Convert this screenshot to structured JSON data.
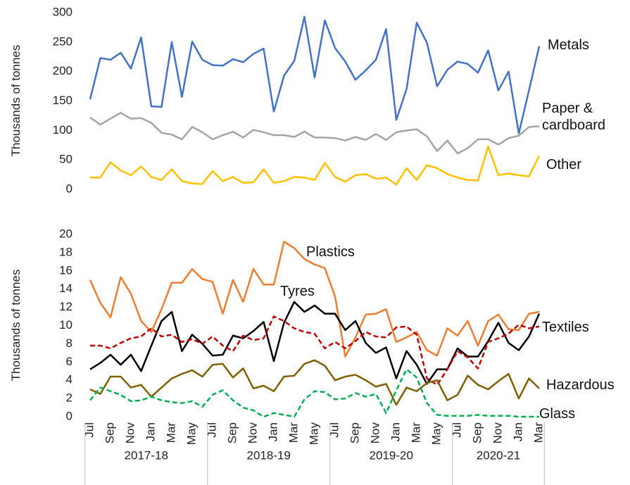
{
  "chart_data": [
    {
      "type": "line",
      "ylabel": "Thousands of tonnes",
      "ylim": [
        0,
        300
      ],
      "yticks": [
        0,
        50,
        100,
        150,
        200,
        250,
        300
      ],
      "grid": false,
      "series": [
        {
          "name": "Metals",
          "color": "#4472c4",
          "values": [
            153,
            223,
            220,
            232,
            205,
            258,
            141,
            140,
            250,
            157,
            251,
            220,
            211,
            210,
            221,
            216,
            230,
            239,
            132,
            193,
            218,
            293,
            190,
            287,
            240,
            217,
            186,
            202,
            220,
            272,
            118,
            170,
            283,
            249,
            175,
            203,
            217,
            213,
            198,
            236,
            168,
            200,
            95,
            168,
            243
          ]
        },
        {
          "name": "Paper & cardboard",
          "color": "#a5a5a5",
          "values": [
            122,
            110,
            120,
            130,
            120,
            121,
            113,
            96,
            93,
            85,
            106,
            97,
            85,
            92,
            98,
            88,
            101,
            97,
            92,
            92,
            89,
            98,
            88,
            88,
            87,
            83,
            89,
            84,
            94,
            84,
            97,
            100,
            102,
            90,
            65,
            83,
            61,
            70,
            85,
            85,
            76,
            87,
            91,
            106,
            107
          ]
        },
        {
          "name": "Other",
          "color": "#ffc000",
          "values": [
            20,
            20,
            46,
            32,
            24,
            39,
            21,
            16,
            34,
            14,
            10,
            9,
            31,
            14,
            21,
            11,
            12,
            34,
            11,
            14,
            21,
            20,
            16,
            45,
            21,
            13,
            24,
            26,
            18,
            20,
            8,
            36,
            16,
            41,
            36,
            26,
            20,
            16,
            15,
            73,
            24,
            27,
            24,
            22,
            57
          ]
        }
      ]
    },
    {
      "type": "line",
      "ylabel": "Thousands of tonnes",
      "ylim": [
        0,
        20
      ],
      "yticks": [
        0,
        2,
        4,
        6,
        8,
        10,
        12,
        14,
        16,
        18,
        20
      ],
      "grid": false,
      "categories": [
        "Jul",
        null,
        "Sep",
        null,
        "Nov",
        null,
        "Jan",
        null,
        "Mar",
        null,
        "May",
        null,
        "Jul",
        null,
        "Sep",
        null,
        "Nov",
        null,
        "Jan",
        null,
        "Mar",
        null,
        "May",
        null,
        "Jul",
        null,
        "Sep",
        null,
        "Nov",
        null,
        "Jan",
        null,
        "Mar",
        null,
        "May",
        null,
        "Jul",
        null,
        "Sep",
        null,
        "Nov",
        null,
        "Jan",
        null,
        "Mar"
      ],
      "x_groups": [
        "2017-18",
        "2018-19",
        "2019-20",
        "2020-21"
      ],
      "series": [
        {
          "name": "Plastics",
          "color": "#ed7d31",
          "style": "solid",
          "values": [
            15.0,
            12.5,
            10.9,
            15.3,
            13.5,
            10.5,
            9.3,
            11.8,
            14.7,
            14.7,
            16.2,
            15.1,
            14.8,
            11.3,
            15.0,
            12.6,
            16.2,
            14.5,
            14.5,
            19.2,
            18.5,
            17.3,
            16.7,
            16.3,
            13.2,
            6.6,
            8.7,
            11.2,
            11.3,
            11.8,
            8.2,
            8.7,
            9.3,
            7.3,
            6.7,
            9.7,
            8.9,
            10.5,
            7.8,
            10.5,
            11.2,
            9.6,
            9.5,
            11.3,
            11.5
          ]
        },
        {
          "name": "Tyres",
          "color": "#000000",
          "style": "solid",
          "values": [
            5.2,
            5.9,
            6.8,
            5.7,
            6.8,
            5.0,
            7.8,
            10.5,
            11.5,
            7.2,
            9.0,
            8.0,
            6.7,
            6.8,
            8.9,
            8.6,
            9.4,
            10.4,
            6.1,
            10.3,
            12.6,
            11.5,
            12.2,
            11.3,
            11.3,
            9.5,
            10.5,
            8.1,
            7.0,
            7.6,
            4.2,
            7.2,
            5.7,
            3.6,
            5.2,
            5.2,
            7.5,
            6.6,
            6.6,
            8.3,
            10.3,
            8.1,
            7.3,
            8.8,
            11.3
          ]
        },
        {
          "name": "Textiles",
          "color": "#c00000",
          "style": "dashed",
          "values": [
            7.8,
            7.8,
            7.5,
            8.1,
            8.6,
            8.8,
            9.7,
            8.8,
            9.0,
            8.2,
            8.5,
            8.0,
            8.8,
            7.8,
            7.2,
            8.9,
            8.4,
            8.6,
            11.0,
            10.5,
            9.7,
            9.3,
            9.1,
            7.5,
            8.2,
            7.5,
            8.3,
            9.3,
            8.8,
            8.7,
            9.8,
            9.9,
            9.0,
            4.2,
            3.5,
            5.2,
            7.2,
            6.5,
            5.3,
            8.2,
            8.6,
            9.1,
            10.1,
            9.7,
            9.9
          ]
        },
        {
          "name": "Hazardous",
          "color": "#806000",
          "style": "solid",
          "values": [
            3.0,
            2.5,
            4.4,
            4.4,
            3.2,
            3.5,
            2.2,
            3.2,
            4.2,
            4.7,
            5.1,
            4.4,
            5.7,
            5.8,
            4.3,
            5.3,
            3.1,
            3.4,
            2.8,
            4.4,
            4.5,
            5.8,
            6.2,
            5.6,
            4.0,
            4.4,
            4.6,
            4.0,
            3.3,
            3.6,
            1.3,
            3.2,
            2.8,
            3.7,
            4.0,
            1.8,
            2.4,
            4.5,
            3.5,
            3.0,
            3.9,
            4.7,
            2.0,
            4.2,
            3.1
          ]
        },
        {
          "name": "Glass",
          "color": "#00b050",
          "style": "dashed",
          "values": [
            1.8,
            3.2,
            2.8,
            2.4,
            1.7,
            1.8,
            2.2,
            1.8,
            1.6,
            1.5,
            1.7,
            1.1,
            2.4,
            2.9,
            1.8,
            1.0,
            0.7,
            0.0,
            0.4,
            0.2,
            0.0,
            1.9,
            2.8,
            2.7,
            1.9,
            2.0,
            2.6,
            2.2,
            2.5,
            0.4,
            2.9,
            5.2,
            4.3,
            1.5,
            0.2,
            0.1,
            0.1,
            0.1,
            0.2,
            0.1,
            0.1,
            0.1,
            0.0,
            0.0,
            0.0
          ]
        }
      ]
    }
  ]
}
